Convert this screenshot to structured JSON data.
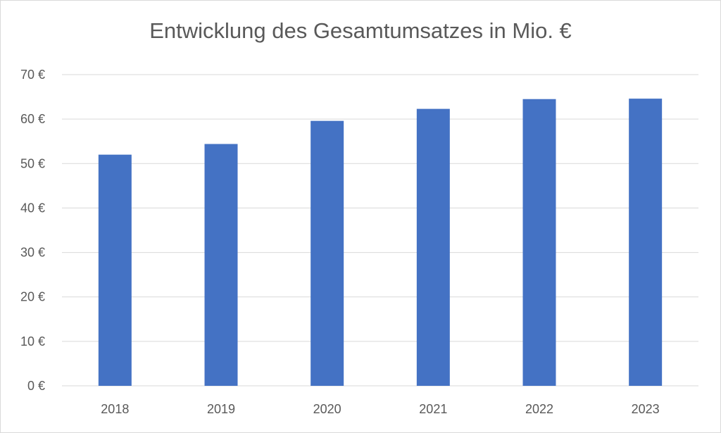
{
  "chart_data": {
    "type": "bar",
    "title": "Entwicklung des Gesamtumsatzes in Mio. €",
    "xlabel": "",
    "ylabel": "",
    "categories": [
      "2018",
      "2019",
      "2020",
      "2021",
      "2022",
      "2023"
    ],
    "values": [
      52,
      54.4,
      59.6,
      62.3,
      64.5,
      64.6
    ],
    "ylim": [
      0,
      70
    ],
    "yticks": [
      0,
      10,
      20,
      30,
      40,
      50,
      60,
      70
    ],
    "ytick_labels": [
      "0 €",
      "10 €",
      "20 €",
      "30 €",
      "40 €",
      "50 €",
      "60 €",
      "70 €"
    ],
    "grid": true,
    "legend": "none",
    "colors": {
      "bar": "#4472C4",
      "grid": "#d9d9d9",
      "text": "#595959"
    }
  }
}
